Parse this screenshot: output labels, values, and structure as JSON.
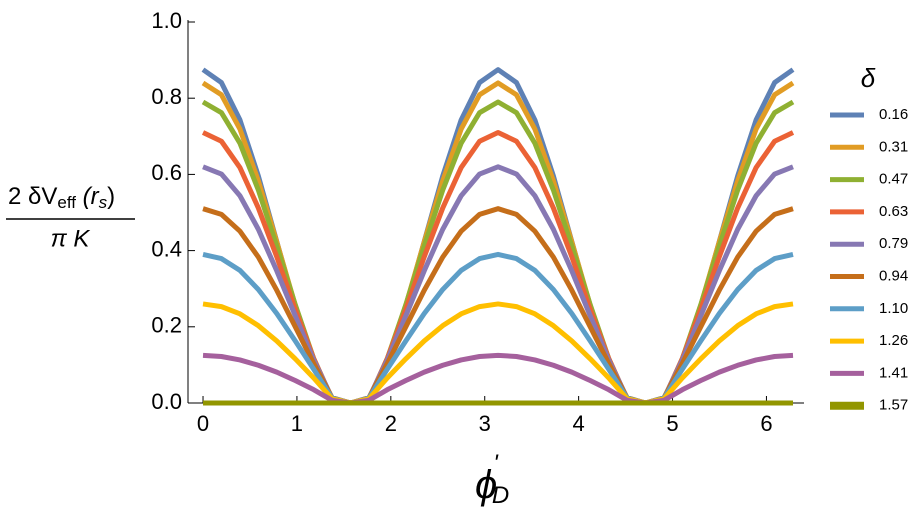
{
  "chart_data": {
    "type": "line",
    "y_label": {
      "numerator": [
        "2 δV",
        "eff",
        " (r",
        "s",
        ")"
      ],
      "denominator": "π K"
    },
    "x_label": {
      "symbol": "ϕ",
      "prime": "'",
      "subscript": "D"
    },
    "legend_title": "δ",
    "legend_position": "right",
    "xlim": [
      -0.16,
      6.4
    ],
    "ylim": [
      0,
      1
    ],
    "xticks": [
      0,
      1,
      2,
      3,
      4,
      5,
      6
    ],
    "yticks": [
      {
        "value": 0,
        "label": "0.0"
      },
      {
        "value": 0.2,
        "label": "0.2"
      },
      {
        "value": 0.4,
        "label": "0.4"
      },
      {
        "value": 0.6,
        "label": "0.6"
      },
      {
        "value": 0.8,
        "label": "0.8"
      },
      {
        "value": 1,
        "label": "1.0"
      }
    ],
    "x": [
      0,
      0.196,
      0.393,
      0.589,
      0.785,
      0.982,
      1.178,
      1.374,
      1.571,
      1.767,
      1.963,
      2.16,
      2.356,
      2.553,
      2.749,
      2.945,
      3.142,
      3.338,
      3.534,
      3.731,
      3.927,
      4.123,
      4.32,
      4.516,
      4.712,
      4.909,
      5.105,
      5.301,
      5.498,
      5.694,
      5.89,
      6.087,
      6.283
    ],
    "series": [
      {
        "name": "0.16",
        "color": "#5e81b5",
        "values": [
          0.875,
          0.841,
          0.743,
          0.596,
          0.424,
          0.252,
          0.105,
          0.007,
          0,
          0.007,
          0.105,
          0.252,
          0.424,
          0.596,
          0.743,
          0.841,
          0.875,
          0.841,
          0.743,
          0.596,
          0.424,
          0.252,
          0.105,
          0.007,
          0,
          0.007,
          0.105,
          0.252,
          0.424,
          0.596,
          0.743,
          0.841,
          0.875
        ]
      },
      {
        "name": "0.31",
        "color": "#e19c24",
        "values": [
          0.84,
          0.809,
          0.719,
          0.583,
          0.423,
          0.257,
          0.112,
          0.008,
          0,
          0.008,
          0.112,
          0.257,
          0.423,
          0.583,
          0.719,
          0.809,
          0.84,
          0.809,
          0.719,
          0.583,
          0.423,
          0.257,
          0.112,
          0.008,
          0,
          0.008,
          0.112,
          0.257,
          0.423,
          0.583,
          0.719,
          0.809,
          0.84
        ]
      },
      {
        "name": "0.47",
        "color": "#8fb032",
        "values": [
          0.79,
          0.762,
          0.682,
          0.559,
          0.412,
          0.258,
          0.117,
          0.01,
          0,
          0.01,
          0.117,
          0.258,
          0.412,
          0.559,
          0.682,
          0.762,
          0.79,
          0.762,
          0.682,
          0.559,
          0.412,
          0.258,
          0.117,
          0.01,
          0,
          0.01,
          0.117,
          0.258,
          0.412,
          0.559,
          0.682,
          0.762,
          0.79
        ]
      },
      {
        "name": "0.63",
        "color": "#eb6235",
        "values": [
          0.71,
          0.687,
          0.618,
          0.512,
          0.384,
          0.246,
          0.117,
          0.011,
          0,
          0.011,
          0.117,
          0.246,
          0.384,
          0.512,
          0.618,
          0.687,
          0.71,
          0.687,
          0.618,
          0.512,
          0.384,
          0.246,
          0.117,
          0.011,
          0,
          0.011,
          0.117,
          0.246,
          0.384,
          0.512,
          0.618,
          0.687,
          0.71
        ]
      },
      {
        "name": "0.79",
        "color": "#8778b3",
        "values": [
          0.62,
          0.601,
          0.544,
          0.456,
          0.347,
          0.229,
          0.113,
          0.013,
          0,
          0.013,
          0.113,
          0.229,
          0.347,
          0.456,
          0.544,
          0.601,
          0.62,
          0.601,
          0.544,
          0.456,
          0.347,
          0.229,
          0.113,
          0.013,
          0,
          0.013,
          0.113,
          0.229,
          0.347,
          0.456,
          0.544,
          0.601,
          0.62
        ]
      },
      {
        "name": "0.94",
        "color": "#c56e1a",
        "values": [
          0.51,
          0.495,
          0.451,
          0.383,
          0.296,
          0.2,
          0.104,
          0.014,
          0,
          0.014,
          0.104,
          0.2,
          0.296,
          0.383,
          0.451,
          0.495,
          0.51,
          0.495,
          0.451,
          0.383,
          0.296,
          0.2,
          0.104,
          0.014,
          0,
          0.014,
          0.104,
          0.2,
          0.296,
          0.383,
          0.451,
          0.495,
          0.51
        ]
      },
      {
        "name": "1.10",
        "color": "#5d9ec7",
        "values": [
          0.39,
          0.379,
          0.348,
          0.298,
          0.235,
          0.163,
          0.089,
          0.013,
          0,
          0.013,
          0.089,
          0.163,
          0.235,
          0.298,
          0.348,
          0.379,
          0.39,
          0.379,
          0.348,
          0.298,
          0.235,
          0.163,
          0.089,
          0.013,
          0,
          0.013,
          0.089,
          0.163,
          0.235,
          0.298,
          0.348,
          0.379,
          0.39
        ]
      },
      {
        "name": "1.26",
        "color": "#ffbf00",
        "values": [
          0.26,
          0.253,
          0.234,
          0.203,
          0.163,
          0.116,
          0.066,
          0.011,
          0,
          0.011,
          0.066,
          0.116,
          0.163,
          0.203,
          0.234,
          0.253,
          0.26,
          0.253,
          0.234,
          0.203,
          0.163,
          0.116,
          0.066,
          0.011,
          0,
          0.011,
          0.066,
          0.116,
          0.163,
          0.203,
          0.234,
          0.253,
          0.26
        ]
      },
      {
        "name": "1.41",
        "color": "#a5609d",
        "values": [
          0.125,
          0.122,
          0.113,
          0.099,
          0.081,
          0.059,
          0.035,
          0.007,
          0,
          0.007,
          0.035,
          0.059,
          0.081,
          0.099,
          0.113,
          0.122,
          0.125,
          0.122,
          0.113,
          0.099,
          0.081,
          0.059,
          0.035,
          0.007,
          0,
          0.007,
          0.035,
          0.059,
          0.081,
          0.099,
          0.113,
          0.122,
          0.125
        ]
      },
      {
        "name": "1.57",
        "color": "#929600",
        "values": [
          0,
          0,
          0,
          0,
          0,
          0,
          0,
          0,
          0,
          0,
          0,
          0,
          0,
          0,
          0,
          0,
          0,
          0,
          0,
          0,
          0,
          0,
          0,
          0,
          0,
          0,
          0,
          0,
          0,
          0,
          0,
          0,
          0
        ]
      }
    ]
  }
}
